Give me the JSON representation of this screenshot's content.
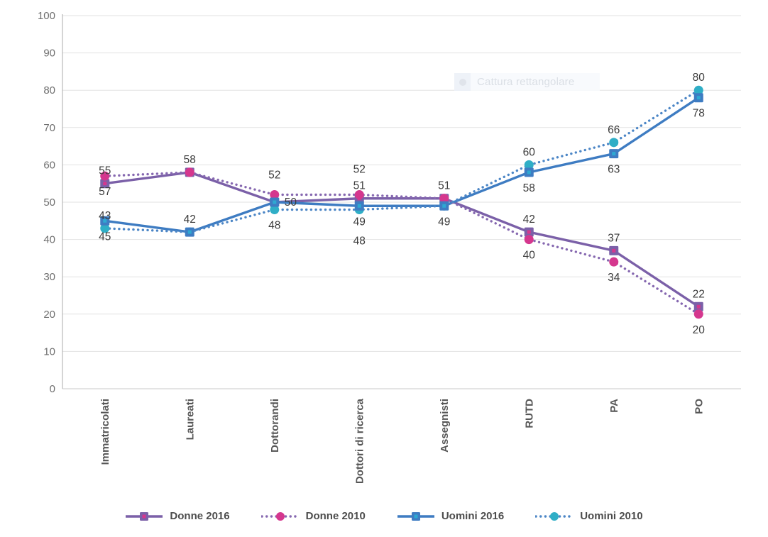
{
  "window": {
    "background": "#ffffff"
  },
  "overlay": {
    "icon": "ellipse-icon",
    "label": "Cattura rettangolare"
  },
  "chart_data": {
    "type": "line",
    "title": "",
    "xlabel": "",
    "ylabel": "",
    "categories": [
      "Immatricolati",
      "Laureati",
      "Dottorandi",
      "Dottori di ricerca",
      "Assegnisti",
      "RUTD",
      "PA",
      "PO"
    ],
    "series": [
      {
        "name": "Donne 2016",
        "line_style": "solid",
        "marker": "square",
        "color": "#7B60A8",
        "marker_fill": "#7B60A8",
        "marker_inner": "#D5378E",
        "values": [
          55,
          58,
          50,
          51,
          51,
          42,
          37,
          22
        ]
      },
      {
        "name": "Donne 2010",
        "line_style": "dotted",
        "marker": "circle",
        "color": "#8668B0",
        "marker_fill": "#D5378E",
        "values": [
          57,
          58,
          52,
          52,
          51,
          40,
          34,
          20
        ]
      },
      {
        "name": "Uomini 2016",
        "line_style": "solid",
        "marker": "square",
        "color": "#3E7CC2",
        "marker_fill": "#3E7CC2",
        "marker_inner": "#2EA9D2",
        "values": [
          45,
          42,
          50,
          49,
          49,
          58,
          63,
          78
        ]
      },
      {
        "name": "Uomini 2010",
        "line_style": "dotted",
        "marker": "circle",
        "color": "#4C86C6",
        "marker_fill": "#2FAEC6",
        "values": [
          43,
          42,
          48,
          48,
          49,
          60,
          66,
          80
        ]
      }
    ],
    "y_axis": {
      "min": 0,
      "max": 100,
      "step": 10,
      "tick_labels": [
        "0",
        "10",
        "20",
        "30",
        "40",
        "50",
        "60",
        "70",
        "80",
        "90",
        "100"
      ]
    },
    "grid": true,
    "legend_position": "bottom",
    "data_labels": [
      {
        "text": "55",
        "cat": 0,
        "value": 55,
        "side": "above"
      },
      {
        "text": "57",
        "cat": 0,
        "value": 57,
        "side": "below"
      },
      {
        "text": "43",
        "cat": 0,
        "value": 43,
        "side": "above"
      },
      {
        "text": "45",
        "cat": 0,
        "value": 45,
        "side": "below"
      },
      {
        "text": "58",
        "cat": 1,
        "value": 58,
        "side": "above"
      },
      {
        "text": "42",
        "cat": 1,
        "value": 42,
        "side": "above"
      },
      {
        "text": "52",
        "cat": 2,
        "value": 52,
        "side": "above",
        "lift": -10
      },
      {
        "text": "50",
        "cat": 2,
        "value": 50,
        "side": "right"
      },
      {
        "text": "48",
        "cat": 2,
        "value": 48,
        "side": "below"
      },
      {
        "text": "52",
        "cat": 3,
        "value": 52,
        "side": "above",
        "lift": -18
      },
      {
        "text": "51",
        "cat": 3,
        "value": 51,
        "side": "above"
      },
      {
        "text": "49",
        "cat": 3,
        "value": 49,
        "side": "below"
      },
      {
        "text": "48",
        "cat": 3,
        "value": 48,
        "side": "below",
        "lift": 22
      },
      {
        "text": "51",
        "cat": 4,
        "value": 51,
        "side": "above"
      },
      {
        "text": "49",
        "cat": 4,
        "value": 49,
        "side": "below"
      },
      {
        "text": "60",
        "cat": 5,
        "value": 60,
        "side": "above"
      },
      {
        "text": "58",
        "cat": 5,
        "value": 58,
        "side": "below"
      },
      {
        "text": "42",
        "cat": 5,
        "value": 42,
        "side": "above"
      },
      {
        "text": "40",
        "cat": 5,
        "value": 40,
        "side": "below"
      },
      {
        "text": "66",
        "cat": 6,
        "value": 66,
        "side": "above"
      },
      {
        "text": "63",
        "cat": 6,
        "value": 63,
        "side": "below"
      },
      {
        "text": "37",
        "cat": 6,
        "value": 37,
        "side": "above"
      },
      {
        "text": "34",
        "cat": 6,
        "value": 34,
        "side": "below"
      },
      {
        "text": "80",
        "cat": 7,
        "value": 80,
        "side": "above"
      },
      {
        "text": "78",
        "cat": 7,
        "value": 78,
        "side": "below"
      },
      {
        "text": "22",
        "cat": 7,
        "value": 22,
        "side": "above"
      },
      {
        "text": "20",
        "cat": 7,
        "value": 20,
        "side": "below"
      }
    ],
    "colors": {
      "grid": "#e2e2e2",
      "axis_left": "#ababab",
      "axis_bottom": "#c8c8c8",
      "tick_text": "#6e6e6e",
      "data_label_text": "#3b3b3b",
      "category_text": "#565656",
      "legend_text": "#4c4c4c"
    }
  }
}
